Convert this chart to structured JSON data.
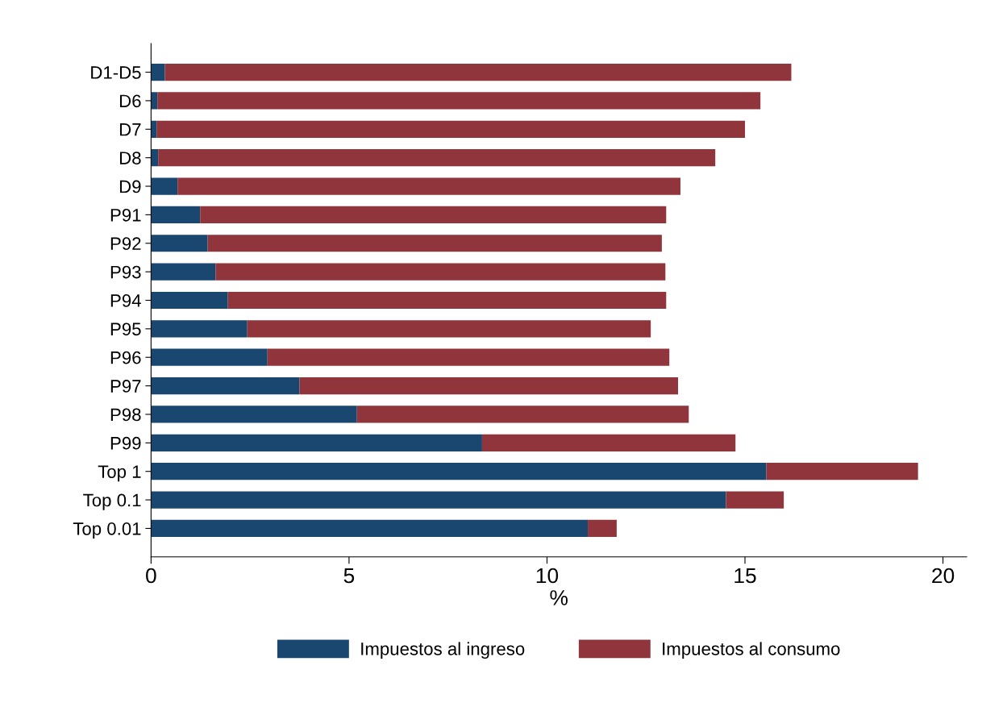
{
  "chart_data": {
    "type": "bar",
    "orientation": "horizontal",
    "stacked": true,
    "xlabel": "%",
    "categories": [
      "D1-D5",
      "D6",
      "D7",
      "D8",
      "D9",
      "P91",
      "P92",
      "P93",
      "P94",
      "P95",
      "P96",
      "P97",
      "P98",
      "P99",
      "Top 1",
      "Top 0.1",
      "Top 0.01"
    ],
    "series": [
      {
        "name": "Impuestos al ingreso",
        "color": "#1a476f",
        "values": [
          0.35,
          0.16,
          0.14,
          0.18,
          0.67,
          1.24,
          1.43,
          1.63,
          1.94,
          2.43,
          2.94,
          3.75,
          5.2,
          8.36,
          15.54,
          14.52,
          11.03
        ]
      },
      {
        "name": "Impuestos al consumo",
        "color": "#90353b",
        "values": [
          15.82,
          15.23,
          14.86,
          14.07,
          12.7,
          11.77,
          11.47,
          11.36,
          11.07,
          10.19,
          10.15,
          9.56,
          8.38,
          6.4,
          3.83,
          1.46,
          0.73
        ]
      }
    ],
    "xlim": [
      0,
      20.6
    ],
    "xticks": [
      0,
      5,
      10,
      15,
      20
    ],
    "grid": false,
    "legend": "bottom"
  }
}
